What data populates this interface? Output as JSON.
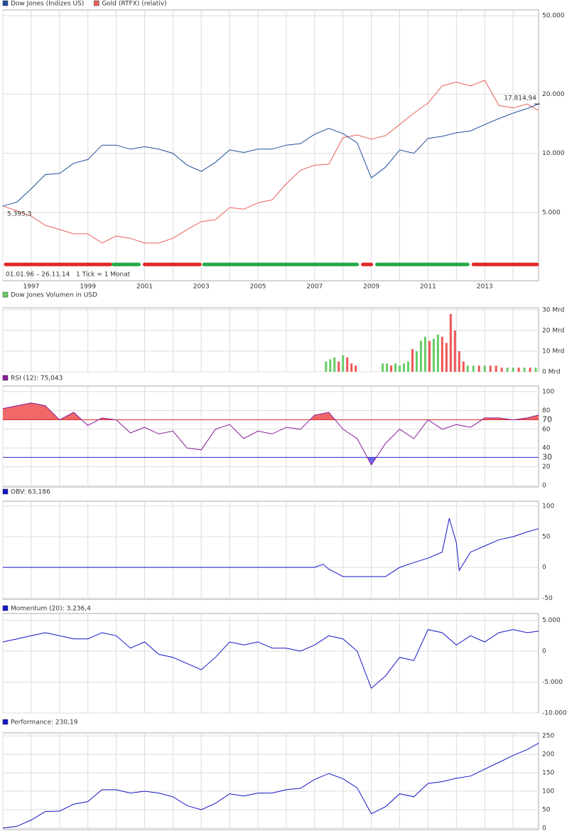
{
  "chart_data": [
    {
      "type": "line",
      "log": true,
      "x": [
        1996,
        1996.5,
        1997,
        1997.5,
        1998,
        1998.5,
        1999,
        1999.5,
        2000,
        2000.5,
        2001,
        2001.5,
        2002,
        2002.5,
        2003,
        2003.5,
        2004,
        2004.5,
        2005,
        2005.5,
        2006,
        2006.5,
        2007,
        2007.5,
        2008,
        2008.5,
        2009,
        2009.5,
        2010,
        2010.5,
        2011,
        2011.5,
        2012,
        2012.5,
        2013,
        2013.5,
        2014,
        2014.5,
        2014.9
      ],
      "series": [
        {
          "name": "Dow Jones (Indizes US)",
          "color": "#1f4e9c",
          "values": [
            5395.3,
            5650,
            6600,
            7800,
            7900,
            8900,
            9300,
            11000,
            11000,
            10500,
            10800,
            10500,
            10000,
            8700,
            8100,
            9000,
            10400,
            10100,
            10500,
            10500,
            11000,
            11200,
            12500,
            13400,
            12600,
            11300,
            7500,
            8500,
            10400,
            10000,
            11900,
            12200,
            12700,
            13000,
            14000,
            15000,
            16000,
            16900,
            17814.94
          ],
          "value_labels": [
            "5.395,3",
            null,
            null,
            null,
            null,
            null,
            null,
            null,
            null,
            null,
            null,
            null,
            null,
            null,
            null,
            null,
            null,
            null,
            null,
            null,
            null,
            null,
            null,
            null,
            null,
            null,
            null,
            null,
            null,
            null,
            null,
            null,
            null,
            null,
            null,
            null,
            null,
            null,
            "17.814,94"
          ]
        },
        {
          "name": "Gold (RTFX) (relativ)",
          "color": "#e8605a",
          "values": [
            5395,
            5100,
            4800,
            4300,
            4100,
            3900,
            3900,
            3500,
            3800,
            3700,
            3500,
            3500,
            3700,
            4100,
            4500,
            4600,
            5300,
            5200,
            5600,
            5800,
            7000,
            8200,
            8700,
            8800,
            12000,
            12400,
            11800,
            12300,
            14000,
            16000,
            18000,
            22000,
            23000,
            22000,
            23500,
            17500,
            17000,
            17800,
            16500
          ]
        }
      ],
      "xlim": [
        1996,
        2014.9
      ],
      "xticks": [
        1997,
        1999,
        2001,
        2003,
        2005,
        2007,
        2009,
        2011,
        2013
      ],
      "xminor": [
        1996,
        1998,
        2000,
        2002,
        2004,
        2006,
        2008,
        2010,
        2012,
        2014
      ],
      "ylim": [
        2250,
        53500
      ],
      "yticks": [
        {
          "value": 5000,
          "label": "5.000"
        },
        {
          "value": 10000,
          "label": "10.000"
        },
        {
          "value": 20000,
          "label": "20.000"
        },
        {
          "value": 50000,
          "label": "50.000"
        }
      ],
      "trend_bars": [
        {
          "from": 1996.1,
          "to": 1999.8,
          "color": "#e02828"
        },
        {
          "from": 1999.9,
          "to": 2000.8,
          "color": "#22a845"
        },
        {
          "from": 2001.0,
          "to": 2002.95,
          "color": "#e02828"
        },
        {
          "from": 2003.1,
          "to": 2008.5,
          "color": "#22a845"
        },
        {
          "from": 2008.7,
          "to": 2009.0,
          "color": "#e02828"
        },
        {
          "from": 2009.2,
          "to": 2012.4,
          "color": "#22a845"
        },
        {
          "from": 2012.6,
          "to": 2014.85,
          "color": "#e02828"
        }
      ],
      "note": "01.01.96 – 26.11.14   1 Tick = 1 Monat"
    },
    {
      "type": "bar",
      "title": "Dow Jones Volumen in USD",
      "color": "#66cc66",
      "x": [
        2007.4,
        2007.55,
        2007.7,
        2007.85,
        2008.0,
        2008.15,
        2008.3,
        2008.45,
        2009.4,
        2009.55,
        2009.7,
        2009.85,
        2010.0,
        2010.15,
        2010.3,
        2010.45,
        2010.6,
        2010.75,
        2010.9,
        2011.05,
        2011.2,
        2011.35,
        2011.5,
        2011.65,
        2011.8,
        2011.95,
        2012.1,
        2012.25,
        2012.4,
        2012.6,
        2012.8,
        2013.0,
        2013.2,
        2013.4,
        2013.6,
        2013.8,
        2014.0,
        2014.2,
        2014.4,
        2014.6,
        2014.8
      ],
      "values": [
        5,
        6,
        7,
        5,
        8,
        7,
        4,
        3,
        4,
        4,
        3,
        4,
        3,
        4,
        5,
        11,
        10,
        15,
        17,
        15,
        16,
        18,
        17,
        14,
        28,
        20,
        10,
        5,
        3,
        3,
        3,
        3,
        3,
        3,
        2,
        2,
        2,
        2,
        2,
        2,
        2
      ],
      "colors": [
        "#66cc66",
        "#66cc66",
        "#66cc66",
        "#ee5555",
        "#66cc66",
        "#ee5555",
        "#ee5555",
        "#ee5555",
        "#66cc66",
        "#66cc66",
        "#ee5555",
        "#66cc66",
        "#66cc66",
        "#66cc66",
        "#66cc66",
        "#ee5555",
        "#66cc66",
        "#66cc66",
        "#66cc66",
        "#ee5555",
        "#66cc66",
        "#66cc66",
        "#ee5555",
        "#ee5555",
        "#ee5555",
        "#ee5555",
        "#ee5555",
        "#ee5555",
        "#66cc66",
        "#66cc66",
        "#ee5555",
        "#66cc66",
        "#ee5555",
        "#ee5555",
        "#ee5555",
        "#66cc66",
        "#66cc66",
        "#ee5555",
        "#66cc66",
        "#ee5555",
        "#66cc66"
      ],
      "ylim": [
        0,
        31
      ],
      "yticks": [
        {
          "value": 0,
          "label": "0 Mrd"
        },
        {
          "value": 10,
          "label": "10 Mrd"
        },
        {
          "value": 20,
          "label": "20 Mrd"
        },
        {
          "value": 30,
          "label": "30 Mrd"
        }
      ]
    },
    {
      "type": "line",
      "title": "RSI (12): 75,043",
      "color": "#8a1a9a",
      "x": [
        1996,
        1996.5,
        1997,
        1997.5,
        1998,
        1998.5,
        1999,
        1999.5,
        2000,
        2000.5,
        2001,
        2001.5,
        2002,
        2002.5,
        2003,
        2003.5,
        2004,
        2004.5,
        2005,
        2005.5,
        2006,
        2006.5,
        2007,
        2007.5,
        2008,
        2008.5,
        2009,
        2009.5,
        2010,
        2010.5,
        2011,
        2011.5,
        2012,
        2012.5,
        2013,
        2013.5,
        2014,
        2014.5,
        2014.9
      ],
      "values": [
        82,
        85,
        88,
        85,
        70,
        78,
        64,
        72,
        70,
        56,
        62,
        55,
        58,
        40,
        38,
        60,
        65,
        50,
        58,
        55,
        62,
        60,
        75,
        78,
        60,
        50,
        22,
        45,
        60,
        50,
        70,
        60,
        65,
        62,
        72,
        72,
        70,
        72,
        75
      ],
      "ylim": [
        -1.5,
        106
      ],
      "yticks": [
        0,
        20,
        30,
        40,
        60,
        70,
        80,
        100
      ],
      "ref_lines": [
        {
          "value": 70,
          "color": "#e03030",
          "fill": "above",
          "fill_color": "#f06868"
        },
        {
          "value": 30,
          "color": "#3030d0",
          "fill": "below",
          "fill_color": "#6a6af0"
        }
      ]
    },
    {
      "type": "line",
      "title": "OBV: 63,186",
      "color": "#1515c8",
      "x": [
        1996,
        2007.0,
        2007.3,
        2007.5,
        2007.8,
        2008.0,
        2008.5,
        2009.5,
        2010.0,
        2010.5,
        2011.0,
        2011.5,
        2011.75,
        2012.0,
        2012.1,
        2012.5,
        2013.0,
        2013.5,
        2014.0,
        2014.5,
        2014.9
      ],
      "values": [
        0,
        0,
        5,
        -3,
        -10,
        -15,
        -15,
        -15,
        0,
        8,
        15,
        25,
        80,
        40,
        -5,
        25,
        35,
        45,
        50,
        58,
        63.186
      ],
      "ylim": [
        -52,
        108
      ],
      "yticks": [
        -50,
        0,
        50,
        100
      ]
    },
    {
      "type": "line",
      "title": "Momentum (20): 3.236,4",
      "color": "#1515c8",
      "x": [
        1996,
        1996.5,
        1997,
        1997.5,
        1998,
        1998.5,
        1999,
        1999.5,
        2000,
        2000.5,
        2001,
        2001.5,
        2002,
        2002.5,
        2003,
        2003.5,
        2004,
        2004.5,
        2005,
        2005.5,
        2006,
        2006.5,
        2007,
        2007.5,
        2008,
        2008.5,
        2009,
        2009.5,
        2010,
        2010.5,
        2011,
        2011.5,
        2012,
        2012.5,
        2013,
        2013.5,
        2014,
        2014.5,
        2014.9
      ],
      "values": [
        1500,
        2000,
        2500,
        3000,
        2500,
        2000,
        2000,
        3000,
        2500,
        500,
        1500,
        -500,
        -1000,
        -2000,
        -3000,
        -1000,
        1500,
        1000,
        1500,
        500,
        500,
        0,
        1000,
        2500,
        2000,
        0,
        -6000,
        -4000,
        -1000,
        -1500,
        3500,
        3000,
        1000,
        2500,
        1500,
        3000,
        3500,
        3000,
        3236.4
      ],
      "ylim": [
        -10000,
        6100
      ],
      "yticks": [
        {
          "value": -10000,
          "label": "-10.000"
        },
        {
          "value": -5000,
          "label": "-5.000"
        },
        0,
        {
          "value": 5000,
          "label": "5.000"
        }
      ]
    },
    {
      "type": "line",
      "title": "Performance: 230,19",
      "color": "#1515c8",
      "x": [
        1996,
        1996.5,
        1997,
        1997.5,
        1998,
        1998.5,
        1999,
        1999.5,
        2000,
        2000.5,
        2001,
        2001.5,
        2002,
        2002.5,
        2003,
        2003.5,
        2004,
        2004.5,
        2005,
        2005.5,
        2006,
        2006.5,
        2007,
        2007.5,
        2008,
        2008.5,
        2009,
        2009.5,
        2010,
        2010.5,
        2011,
        2011.5,
        2012,
        2012.5,
        2013,
        2013.5,
        2014,
        2014.5,
        2014.9
      ],
      "values": [
        0,
        5,
        22,
        45,
        46,
        65,
        72,
        104,
        104,
        95,
        100,
        95,
        85,
        61,
        50,
        67,
        93,
        87,
        95,
        95,
        104,
        108,
        132,
        148,
        134,
        109,
        39,
        58,
        93,
        85,
        121,
        126,
        135,
        141,
        160,
        178,
        197,
        213,
        230.19
      ],
      "ylim": [
        -4,
        258
      ],
      "yticks": [
        0,
        50,
        100,
        150,
        200,
        250
      ]
    }
  ]
}
